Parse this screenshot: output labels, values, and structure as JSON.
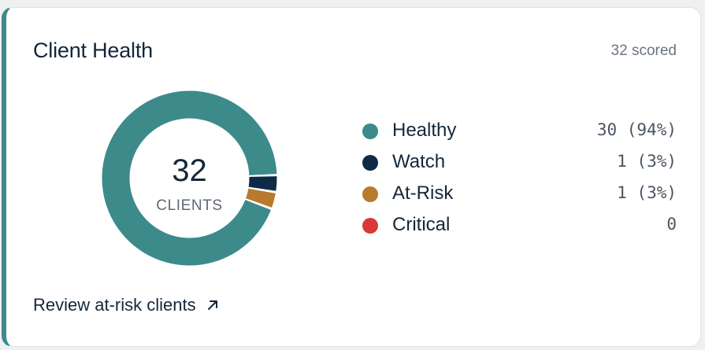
{
  "card": {
    "title": "Client Health",
    "scored_label": "32 scored"
  },
  "donut": {
    "count": "32",
    "label": "CLIENTS"
  },
  "legend": [
    {
      "label": "Healthy",
      "value": "30 (94%)",
      "count": 30,
      "color": "#3d8a8b"
    },
    {
      "label": "Watch",
      "value": "1 (3%)",
      "count": 1,
      "color": "#0f2a47"
    },
    {
      "label": "At-Risk",
      "value": "1 (3%)",
      "count": 1,
      "color": "#b87a2c"
    },
    {
      "label": "Critical",
      "value": "0",
      "count": 0,
      "color": "#d93a35"
    }
  ],
  "review_link": {
    "label": "Review at-risk clients",
    "icon": "arrow-up-right-icon"
  }
}
